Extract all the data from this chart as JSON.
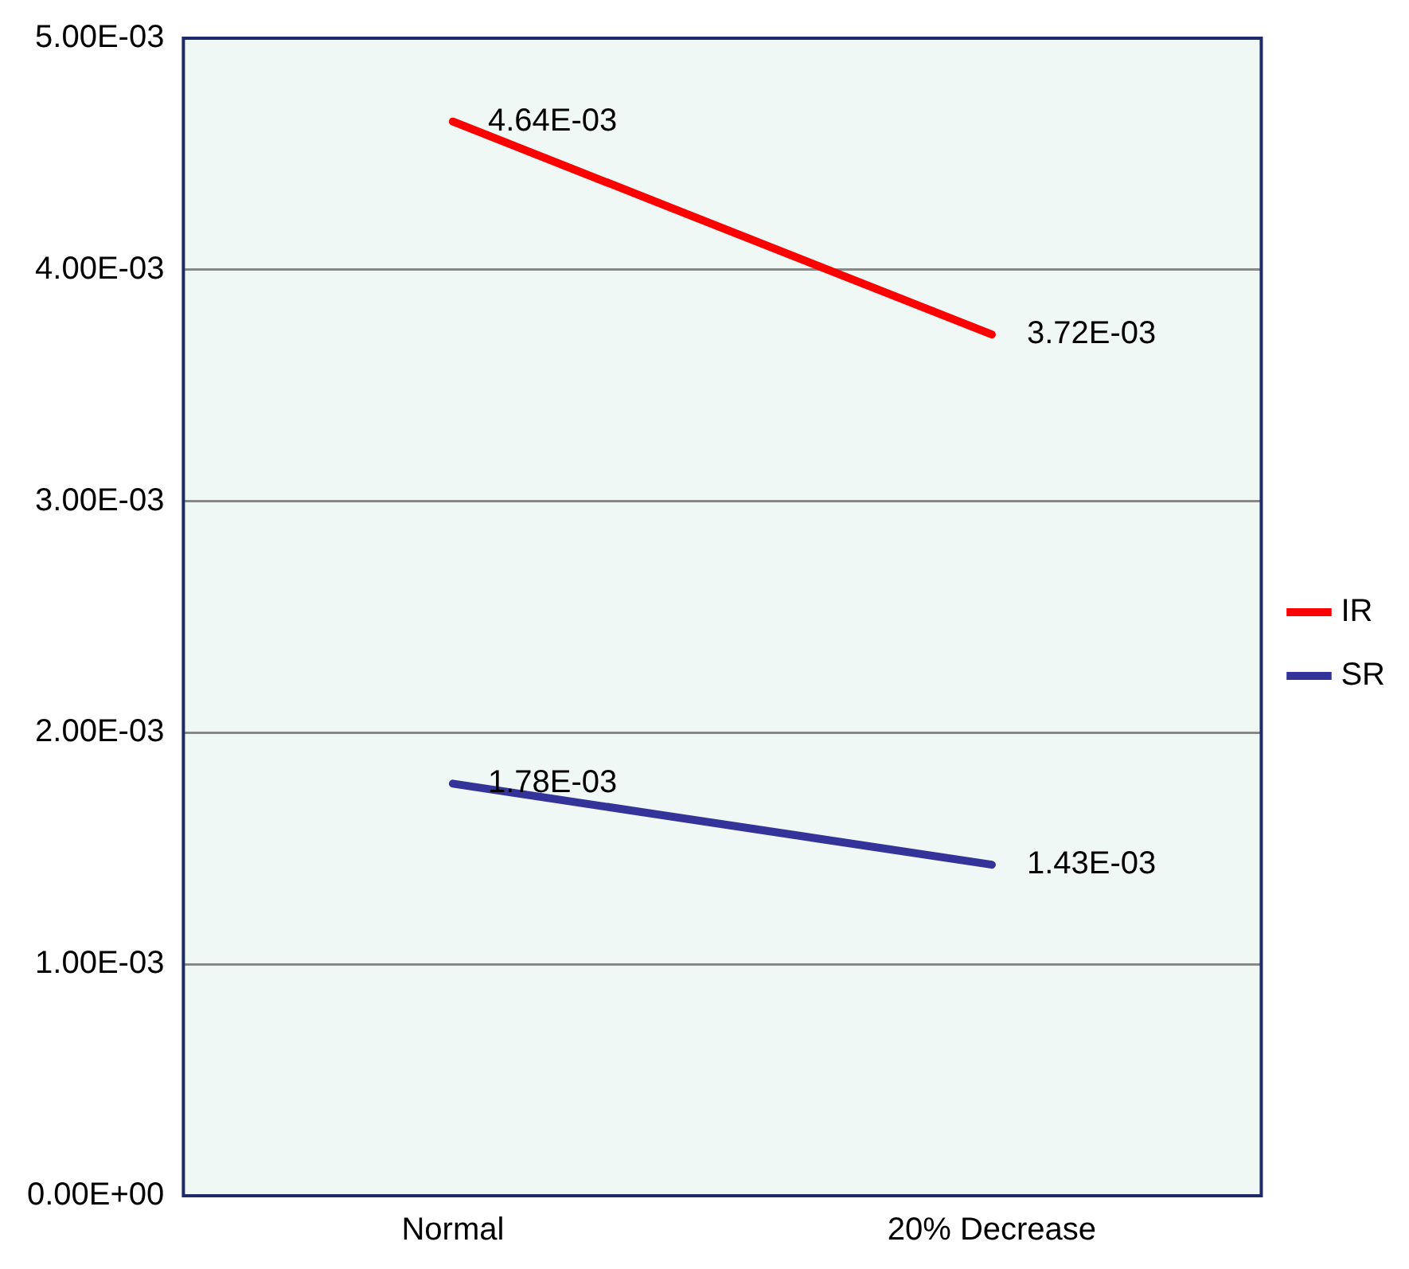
{
  "chart_data": {
    "type": "line",
    "categories": [
      "Normal",
      "20% Decrease"
    ],
    "series": [
      {
        "name": "IR",
        "color": "#ff0000",
        "values": [
          0.00464,
          0.00372
        ],
        "value_labels": [
          "4.64E-03",
          "3.72E-03"
        ]
      },
      {
        "name": "SR",
        "color": "#333399",
        "values": [
          0.00178,
          0.00143
        ],
        "value_labels": [
          "1.78E-03",
          "1.43E-03"
        ]
      }
    ],
    "ylim": [
      0,
      0.005
    ],
    "yticks": [
      {
        "value": 0,
        "label": "0.00E+00"
      },
      {
        "value": 0.001,
        "label": "1.00E-03"
      },
      {
        "value": 0.002,
        "label": "2.00E-03"
      },
      {
        "value": 0.003,
        "label": "3.00E-03"
      },
      {
        "value": 0.004,
        "label": "4.00E-03"
      },
      {
        "value": 0.005,
        "label": "5.00E-03"
      }
    ],
    "grid": "y",
    "legend": "right",
    "marker": "none",
    "line_style": "solid"
  }
}
